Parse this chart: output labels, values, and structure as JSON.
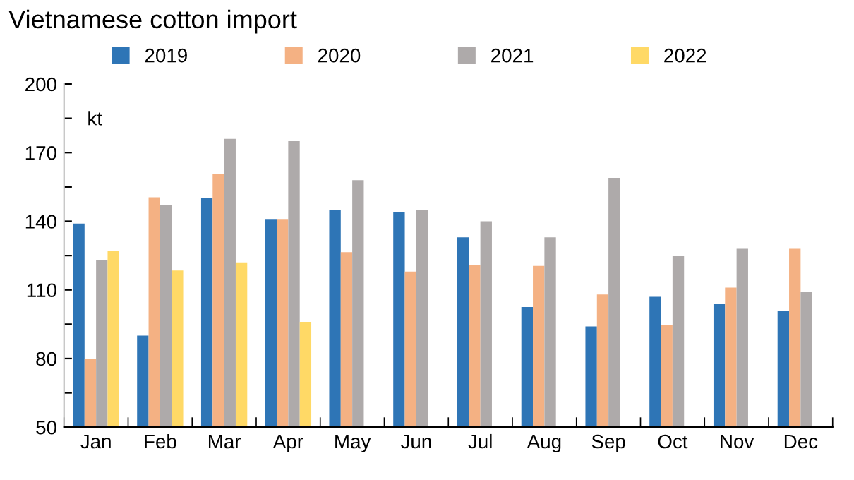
{
  "chart_data": {
    "type": "bar",
    "title": "Vietnamese cotton import",
    "annotations": [
      "kt"
    ],
    "categories": [
      "Jan",
      "Feb",
      "Mar",
      "Apr",
      "May",
      "Jun",
      "Jul",
      "Aug",
      "Sep",
      "Oct",
      "Nov",
      "Dec"
    ],
    "series": [
      {
        "name": "2019",
        "color": "#2e75b6",
        "values": [
          139,
          90,
          150,
          141,
          145,
          144,
          133,
          102.5,
          94,
          107,
          104,
          101
        ]
      },
      {
        "name": "2020",
        "color": "#f4b183",
        "values": [
          80,
          150.5,
          160.5,
          141,
          126.5,
          118,
          121,
          120.5,
          108,
          94.5,
          111,
          128
        ]
      },
      {
        "name": "2021",
        "color": "#aeaaaa",
        "values": [
          123,
          147,
          176,
          175,
          158,
          145,
          140,
          133,
          159,
          125,
          128,
          109
        ]
      },
      {
        "name": "2022",
        "color": "#ffd966",
        "values": [
          127,
          118.5,
          122,
          96,
          null,
          null,
          null,
          null,
          null,
          null,
          null,
          null
        ]
      }
    ],
    "ylim": [
      50,
      200
    ],
    "yticks": [
      50,
      {
        "value": 65,
        "label": null
      },
      80,
      {
        "value": 95,
        "label": null
      },
      110,
      {
        "value": 125,
        "label": null
      },
      140,
      {
        "value": 155,
        "label": null
      },
      170,
      {
        "value": 185,
        "label": null
      },
      200
    ],
    "grid": false,
    "legend": "top"
  }
}
